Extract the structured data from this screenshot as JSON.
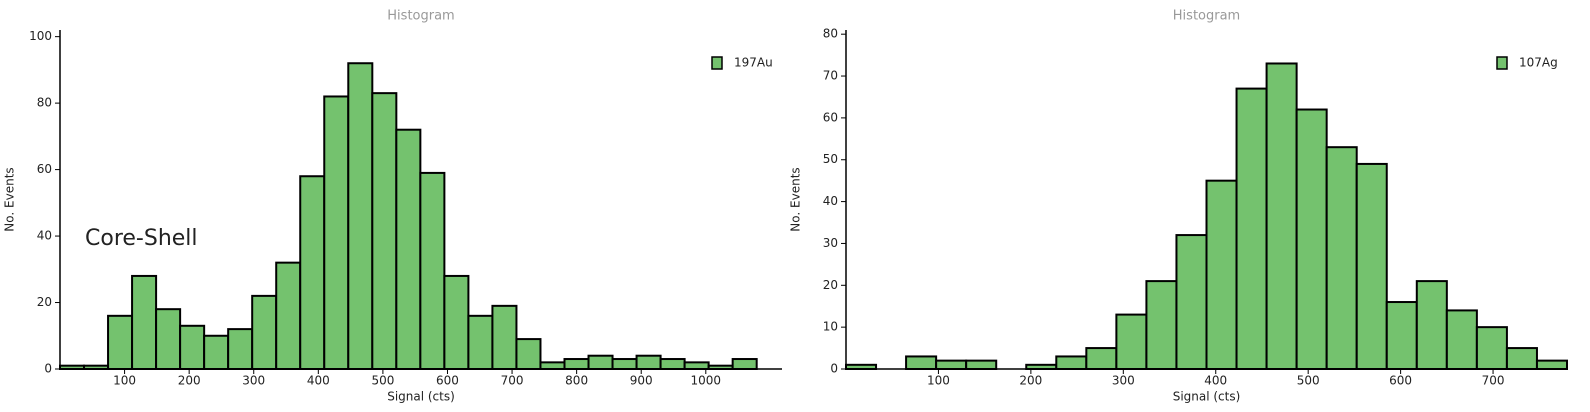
{
  "chart_data": [
    {
      "type": "histogram",
      "title": "Histogram",
      "xlabel": "Signal (cts)",
      "ylabel": "No. Events",
      "annotation": "Core-Shell",
      "series": [
        {
          "name": "197Au",
          "color": "#74c26e",
          "bins": [
            0,
            37.2,
            74.4,
            111.6,
            148.8,
            186,
            223.2,
            260.4,
            297.6,
            334.8,
            372,
            409.2,
            446.4,
            483.6,
            520.8,
            558,
            595.2,
            632.4,
            669.6,
            706.8,
            744,
            781.2,
            818.4,
            855.6,
            892.8,
            930,
            967.2,
            1004.4,
            1041.6,
            1078.8
          ],
          "values": [
            1,
            1,
            16,
            28,
            18,
            13,
            10,
            12,
            22,
            32,
            58,
            82,
            92,
            83,
            72,
            59,
            28,
            16,
            19,
            9,
            2,
            3,
            4,
            3,
            4,
            3,
            2,
            1,
            3
          ]
        }
      ],
      "xlim": [
        0,
        1118
      ],
      "xticks": [
        100,
        200,
        300,
        400,
        500,
        600,
        700,
        800,
        900,
        1000
      ],
      "ylim": [
        0,
        102
      ],
      "yticks": [
        0,
        20,
        40,
        60,
        80,
        100
      ],
      "legend": "upper right"
    },
    {
      "type": "histogram",
      "title": "Histogram",
      "xlabel": "Signal (cts)",
      "ylabel": "No. Events",
      "series": [
        {
          "name": "107Ag",
          "color": "#74c26e",
          "bins": [
            0,
            32.5,
            65,
            97.5,
            130,
            162.5,
            195,
            227.5,
            260,
            292.5,
            325,
            357.5,
            390,
            422.5,
            455,
            487.5,
            520,
            552.5,
            585,
            617.5,
            650,
            682.5,
            715,
            747.5,
            780
          ],
          "values": [
            1,
            0,
            3,
            2,
            2,
            0,
            1,
            3,
            5,
            13,
            21,
            32,
            45,
            67,
            73,
            62,
            53,
            49,
            16,
            21,
            14,
            10,
            5,
            2
          ]
        }
      ],
      "xlim": [
        0,
        780
      ],
      "xticks": [
        100,
        200,
        300,
        400,
        500,
        600,
        700
      ],
      "ylim": [
        0,
        81
      ],
      "yticks": [
        0,
        10,
        20,
        30,
        40,
        50,
        60,
        70,
        80
      ],
      "legend": "upper right"
    }
  ]
}
